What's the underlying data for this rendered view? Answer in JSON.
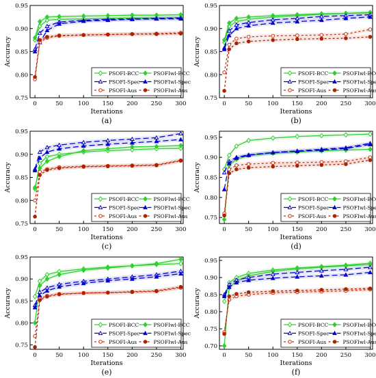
{
  "chart_data": [
    {
      "type": "line",
      "panel_label": "(a)",
      "xlabel": "Iterations",
      "ylabel": "Accuracy",
      "xlim": [
        -10,
        305
      ],
      "ylim": [
        0.75,
        0.95
      ],
      "x_ticks": [
        0,
        50,
        100,
        150,
        200,
        250,
        300
      ],
      "y_ticks": [
        0.75,
        0.8,
        0.85,
        0.9,
        0.95
      ],
      "x": [
        0,
        10,
        25,
        50,
        100,
        150,
        200,
        250,
        300
      ],
      "legend_position": "lower-right",
      "series": [
        {
          "name": "PSOFI-BCC",
          "values": [
            0.875,
            0.905,
            0.918,
            0.92,
            0.921,
            0.922,
            0.923,
            0.923,
            0.924
          ]
        },
        {
          "name": "PSOFIwl-BCC",
          "values": [
            0.88,
            0.915,
            0.925,
            0.926,
            0.927,
            0.928,
            0.929,
            0.929,
            0.93
          ]
        },
        {
          "name": "PSOFI-Spec",
          "values": [
            0.855,
            0.89,
            0.905,
            0.914,
            0.918,
            0.92,
            0.921,
            0.922,
            0.923
          ]
        },
        {
          "name": "PSOFIwl-Spec",
          "values": [
            0.85,
            0.87,
            0.896,
            0.91,
            0.916,
            0.918,
            0.92,
            0.921,
            0.921
          ]
        },
        {
          "name": "PSOFI-Aus",
          "values": [
            0.79,
            0.87,
            0.88,
            0.884,
            0.886,
            0.887,
            0.888,
            0.889,
            0.891
          ]
        },
        {
          "name": "PSOFIwl-Aus",
          "values": [
            0.795,
            0.875,
            0.882,
            0.885,
            0.886,
            0.887,
            0.888,
            0.888,
            0.889
          ]
        }
      ]
    },
    {
      "type": "line",
      "panel_label": "(b)",
      "xlabel": "Iterations",
      "ylabel": "Accuracy",
      "xlim": [
        -10,
        305
      ],
      "ylim": [
        0.75,
        0.95
      ],
      "x_ticks": [
        0,
        50,
        100,
        150,
        200,
        250,
        300
      ],
      "y_ticks": [
        0.75,
        0.8,
        0.85,
        0.9,
        0.95
      ],
      "x": [
        0,
        10,
        25,
        50,
        100,
        150,
        200,
        250,
        300
      ],
      "legend_position": "lower-right",
      "series": [
        {
          "name": "PSOFI-BCC",
          "values": [
            0.87,
            0.905,
            0.915,
            0.92,
            0.925,
            0.928,
            0.931,
            0.933,
            0.935
          ]
        },
        {
          "name": "PSOFIwl-BCC",
          "values": [
            0.875,
            0.912,
            0.922,
            0.925,
            0.928,
            0.93,
            0.932,
            0.933,
            0.934
          ]
        },
        {
          "name": "PSOFI-Spec",
          "values": [
            0.858,
            0.895,
            0.908,
            0.913,
            0.919,
            0.922,
            0.926,
            0.928,
            0.93
          ]
        },
        {
          "name": "PSOFIwl-Spec",
          "values": [
            0.855,
            0.885,
            0.9,
            0.906,
            0.912,
            0.915,
            0.918,
            0.922,
            0.925
          ]
        },
        {
          "name": "PSOFI-Aus",
          "values": [
            0.805,
            0.865,
            0.878,
            0.882,
            0.884,
            0.885,
            0.886,
            0.888,
            0.898
          ]
        },
        {
          "name": "PSOFIwl-Aus",
          "values": [
            0.765,
            0.855,
            0.868,
            0.872,
            0.875,
            0.877,
            0.878,
            0.879,
            0.882
          ]
        }
      ]
    },
    {
      "type": "line",
      "panel_label": "(c)",
      "xlabel": "Iterations",
      "ylabel": "Accuracy",
      "xlim": [
        -10,
        305
      ],
      "ylim": [
        0.75,
        0.95
      ],
      "x_ticks": [
        0,
        50,
        100,
        150,
        200,
        250,
        300
      ],
      "y_ticks": [
        0.75,
        0.8,
        0.85,
        0.9,
        0.95
      ],
      "x": [
        0,
        10,
        25,
        50,
        100,
        150,
        200,
        250,
        300
      ],
      "legend_position": "lower-right",
      "series": [
        {
          "name": "PSOFI-BCC",
          "values": [
            0.825,
            0.88,
            0.895,
            0.9,
            0.905,
            0.908,
            0.91,
            0.912,
            0.913
          ]
        },
        {
          "name": "PSOFIwl-BCC",
          "values": [
            0.828,
            0.87,
            0.885,
            0.895,
            0.908,
            0.912,
            0.916,
            0.917,
            0.919
          ]
        },
        {
          "name": "PSOFI-Spec",
          "values": [
            0.868,
            0.905,
            0.915,
            0.92,
            0.926,
            0.93,
            0.933,
            0.936,
            0.945
          ]
        },
        {
          "name": "PSOFIwl-Spec",
          "values": [
            0.865,
            0.892,
            0.905,
            0.912,
            0.918,
            0.922,
            0.925,
            0.928,
            0.932
          ]
        },
        {
          "name": "PSOFI-Aus",
          "values": [
            0.8,
            0.862,
            0.868,
            0.872,
            0.874,
            0.875,
            0.876,
            0.877,
            0.887
          ]
        },
        {
          "name": "PSOFIwl-Aus",
          "values": [
            0.765,
            0.855,
            0.866,
            0.87,
            0.873,
            0.874,
            0.875,
            0.876,
            0.886
          ]
        }
      ]
    },
    {
      "type": "line",
      "panel_label": "(d)",
      "xlabel": "Iterations",
      "ylabel": "Accuracy",
      "xlim": [
        -10,
        305
      ],
      "ylim": [
        0.735,
        0.965
      ],
      "x_ticks": [
        0,
        50,
        100,
        150,
        200,
        250,
        300
      ],
      "y_ticks": [
        0.75,
        0.8,
        0.85,
        0.9,
        0.95
      ],
      "x": [
        0,
        10,
        25,
        50,
        100,
        150,
        200,
        250,
        300
      ],
      "legend_position": "lower-right",
      "series": [
        {
          "name": "PSOFI-BCC",
          "values": [
            0.87,
            0.905,
            0.928,
            0.942,
            0.948,
            0.952,
            0.954,
            0.956,
            0.958
          ]
        },
        {
          "name": "PSOFIwl-BCC",
          "values": [
            0.745,
            0.88,
            0.895,
            0.905,
            0.91,
            0.913,
            0.916,
            0.918,
            0.92
          ]
        },
        {
          "name": "PSOFI-Spec",
          "values": [
            0.862,
            0.89,
            0.9,
            0.906,
            0.912,
            0.916,
            0.92,
            0.924,
            0.935
          ]
        },
        {
          "name": "PSOFIwl-Spec",
          "values": [
            0.82,
            0.885,
            0.898,
            0.905,
            0.912,
            0.915,
            0.918,
            0.922,
            0.932
          ]
        },
        {
          "name": "PSOFI-Aus",
          "values": [
            0.76,
            0.87,
            0.88,
            0.883,
            0.886,
            0.887,
            0.888,
            0.89,
            0.9
          ]
        },
        {
          "name": "PSOFIwl-Aus",
          "values": [
            0.755,
            0.86,
            0.87,
            0.874,
            0.877,
            0.879,
            0.881,
            0.883,
            0.893
          ]
        }
      ]
    },
    {
      "type": "line",
      "panel_label": "(e)",
      "xlabel": "Iterations",
      "ylabel": "Accuracy",
      "xlim": [
        -10,
        305
      ],
      "ylim": [
        0.74,
        0.95
      ],
      "x_ticks": [
        0,
        50,
        100,
        150,
        200,
        250,
        300
      ],
      "y_ticks": [
        0.75,
        0.8,
        0.85,
        0.9,
        0.95
      ],
      "x": [
        0,
        10,
        25,
        50,
        100,
        150,
        200,
        250,
        300
      ],
      "legend_position": "lower-right",
      "series": [
        {
          "name": "PSOFI-BCC",
          "values": [
            0.86,
            0.895,
            0.91,
            0.917,
            0.923,
            0.927,
            0.93,
            0.933,
            0.935
          ]
        },
        {
          "name": "PSOFIwl-BCC",
          "values": [
            0.8,
            0.885,
            0.9,
            0.91,
            0.92,
            0.925,
            0.93,
            0.935,
            0.945
          ]
        },
        {
          "name": "PSOFI-Spec",
          "values": [
            0.84,
            0.87,
            0.88,
            0.888,
            0.895,
            0.9,
            0.905,
            0.91,
            0.918
          ]
        },
        {
          "name": "PSOFIwl-Spec",
          "values": [
            0.835,
            0.862,
            0.873,
            0.882,
            0.89,
            0.896,
            0.9,
            0.905,
            0.912
          ]
        },
        {
          "name": "PSOFI-Aus",
          "values": [
            0.77,
            0.855,
            0.862,
            0.866,
            0.868,
            0.869,
            0.87,
            0.872,
            0.88
          ]
        },
        {
          "name": "PSOFIwl-Aus",
          "values": [
            0.745,
            0.852,
            0.86,
            0.865,
            0.868,
            0.869,
            0.871,
            0.873,
            0.882
          ]
        }
      ]
    },
    {
      "type": "line",
      "panel_label": "(f)",
      "xlabel": "Iterations",
      "ylabel": "Accuracy",
      "xlim": [
        -10,
        305
      ],
      "ylim": [
        0.69,
        0.96
      ],
      "x_ticks": [
        0,
        50,
        100,
        150,
        200,
        250,
        300
      ],
      "y_ticks": [
        0.7,
        0.75,
        0.8,
        0.85,
        0.9,
        0.95
      ],
      "x": [
        0,
        10,
        25,
        50,
        100,
        150,
        200,
        250,
        300
      ],
      "legend_position": "lower-right",
      "series": [
        {
          "name": "PSOFI-BCC",
          "values": [
            0.83,
            0.885,
            0.9,
            0.912,
            0.922,
            0.928,
            0.932,
            0.936,
            0.942
          ]
        },
        {
          "name": "PSOFIwl-BCC",
          "values": [
            0.7,
            0.87,
            0.89,
            0.905,
            0.918,
            0.925,
            0.93,
            0.934,
            0.938
          ]
        },
        {
          "name": "PSOFI-Spec",
          "values": [
            0.85,
            0.88,
            0.893,
            0.9,
            0.91,
            0.915,
            0.92,
            0.924,
            0.93
          ]
        },
        {
          "name": "PSOFIwl-Spec",
          "values": [
            0.845,
            0.872,
            0.885,
            0.892,
            0.898,
            0.902,
            0.905,
            0.908,
            0.915
          ]
        },
        {
          "name": "PSOFI-Aus",
          "values": [
            0.74,
            0.835,
            0.845,
            0.85,
            0.855,
            0.857,
            0.859,
            0.861,
            0.865
          ]
        },
        {
          "name": "PSOFIwl-Aus",
          "values": [
            0.735,
            0.845,
            0.852,
            0.857,
            0.86,
            0.862,
            0.864,
            0.866,
            0.868
          ]
        }
      ]
    }
  ],
  "series_styles": [
    {
      "color": "#33cc33",
      "dash": "none",
      "marker": "diamond-open"
    },
    {
      "color": "#33cc33",
      "dash": "none",
      "marker": "diamond-filled"
    },
    {
      "color": "#0000cc",
      "dash": "8,4",
      "marker": "triangle-open"
    },
    {
      "color": "#0000cc",
      "dash": "8,4",
      "marker": "triangle-filled"
    },
    {
      "color": "#cc3311",
      "dash": "3,3",
      "marker": "circle-open"
    },
    {
      "color": "#aa2200",
      "dash": "3,3",
      "marker": "circle-filled"
    }
  ]
}
